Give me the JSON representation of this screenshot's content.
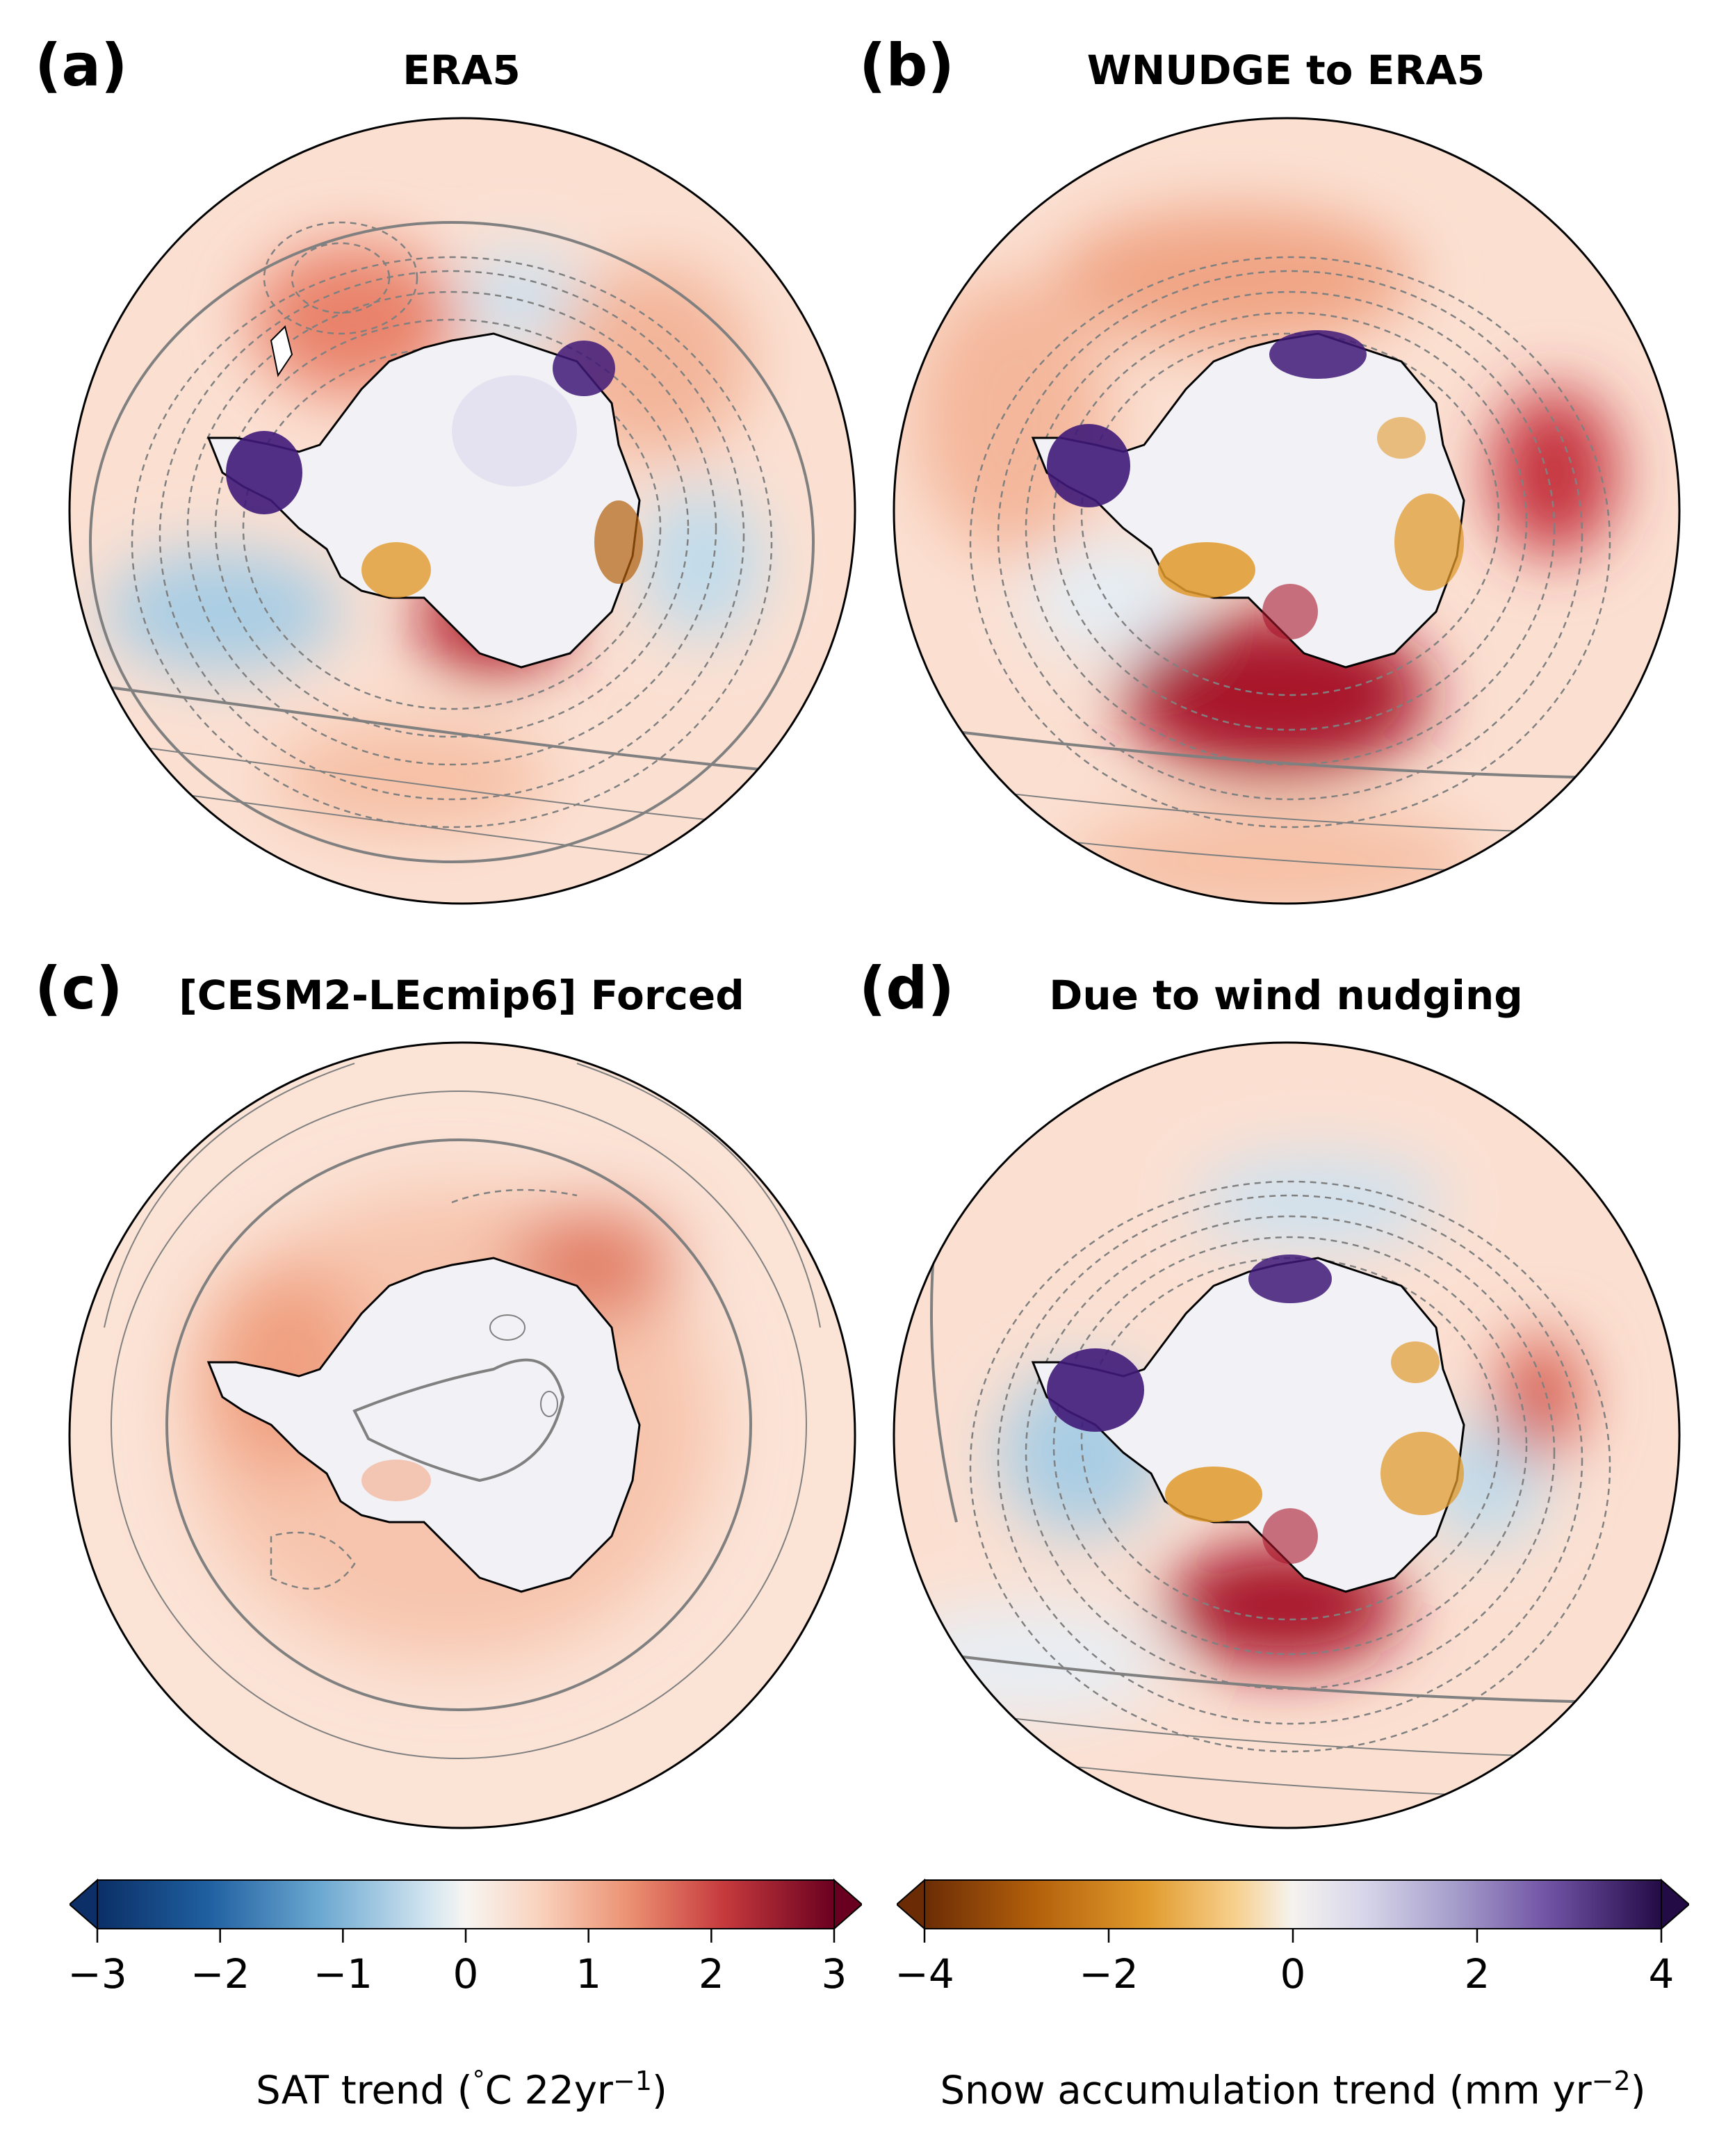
{
  "panels": [
    {
      "letter": "(a)",
      "title": "ERA5"
    },
    {
      "letter": "(b)",
      "title": "WNUDGE to ERA5"
    },
    {
      "letter": "(c)",
      "title": "[CESM2-LEcmip6] Forced"
    },
    {
      "letter": "(d)",
      "title": "Due to wind nudging"
    }
  ],
  "colorbars": [
    {
      "label_main": "SAT trend (",
      "label_deg": "°",
      "label_unit": "C 22yr",
      "label_sup": "−1",
      "label_close": ")",
      "ticks": [
        "−3",
        "−2",
        "−1",
        "0",
        "1",
        "2",
        "3"
      ],
      "tick_values": [
        -3,
        -2,
        -1,
        0,
        1,
        2,
        3
      ],
      "range": [
        -3,
        3
      ],
      "colormap": "RdBu_r",
      "colors": [
        "#0b2f66",
        "#1f5fa0",
        "#4d92c4",
        "#9fc9e2",
        "#e8eef3",
        "#fbe3d3",
        "#f3a987",
        "#d9614d",
        "#b0192a",
        "#6a0020"
      ]
    },
    {
      "label_main": "Snow accumulation trend (mm yr",
      "label_sup": "−2",
      "label_close": ")",
      "ticks": [
        "−4",
        "−2",
        "0",
        "2",
        "4"
      ],
      "tick_values": [
        -4,
        -2,
        0,
        2,
        4
      ],
      "range": [
        -4,
        4
      ],
      "colormap": "PuOr",
      "colors": [
        "#6b2c05",
        "#b3600b",
        "#e09a2c",
        "#f7cf8c",
        "#f5f3ef",
        "#d6d4e9",
        "#a59dcb",
        "#6f51a3",
        "#3f1978",
        "#230b46"
      ]
    }
  ],
  "colors": {
    "ocean_warm": "#f6c8b0",
    "ocean_light": "#fbe3d6",
    "cool": "#b9d7ea",
    "red_strong": "#a8172b",
    "ice": "#f2f1f6",
    "contour": "#808080"
  }
}
